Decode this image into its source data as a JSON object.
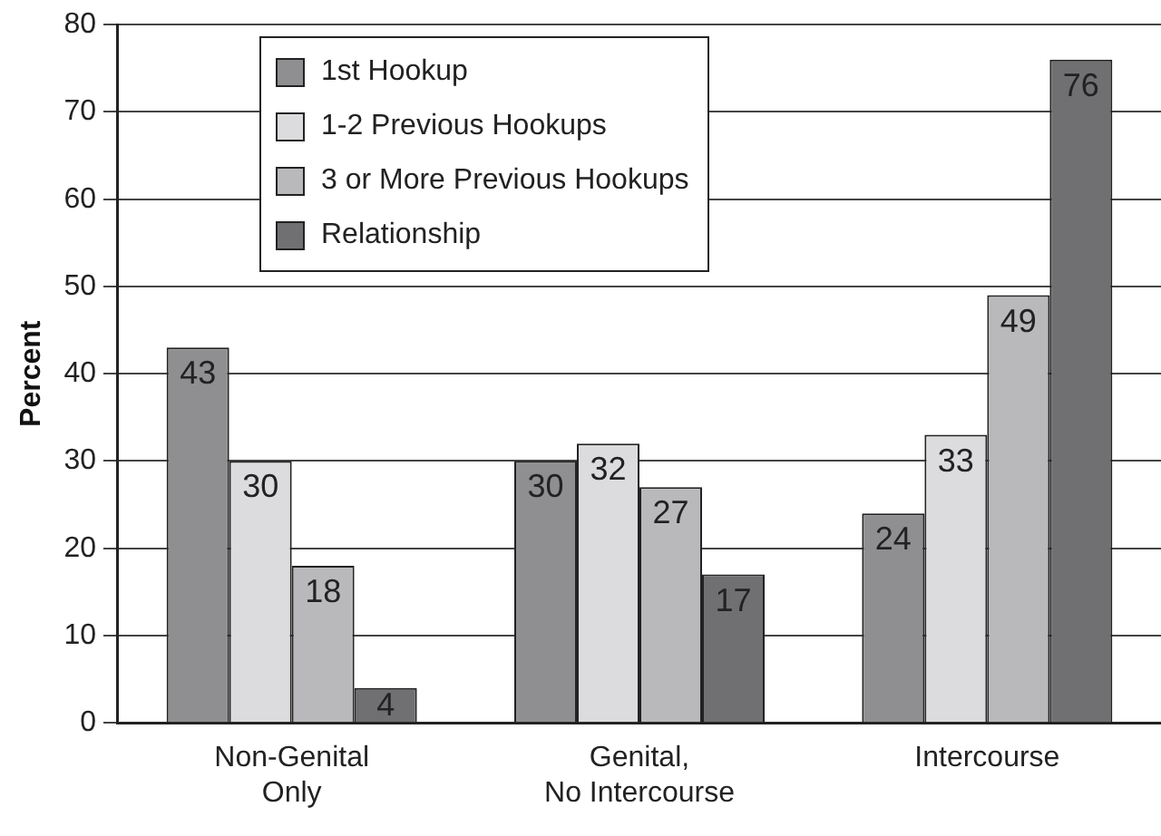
{
  "chart_data": {
    "type": "bar",
    "ylabel": "Percent",
    "categories": [
      "Non-Genital\nOnly",
      "Genital,\nNo Intercourse",
      "Intercourse"
    ],
    "series": [
      {
        "name": "1st Hookup",
        "color": "#8f8f91",
        "values": [
          43,
          30,
          24
        ]
      },
      {
        "name": "1-2 Previous Hookups",
        "color": "#dcdcde",
        "values": [
          30,
          32,
          33
        ]
      },
      {
        "name": "3 or More Previous Hookups",
        "color": "#b9b9bc",
        "values": [
          18,
          27,
          49
        ]
      },
      {
        "name": "Relationship",
        "color": "#707073",
        "values": [
          4,
          17,
          76
        ]
      }
    ],
    "ylim": [
      0,
      80
    ],
    "yticks": [
      0,
      10,
      20,
      30,
      40,
      50,
      60,
      70,
      80
    ],
    "grid": "y",
    "legend": "top left",
    "data_labels": true
  }
}
